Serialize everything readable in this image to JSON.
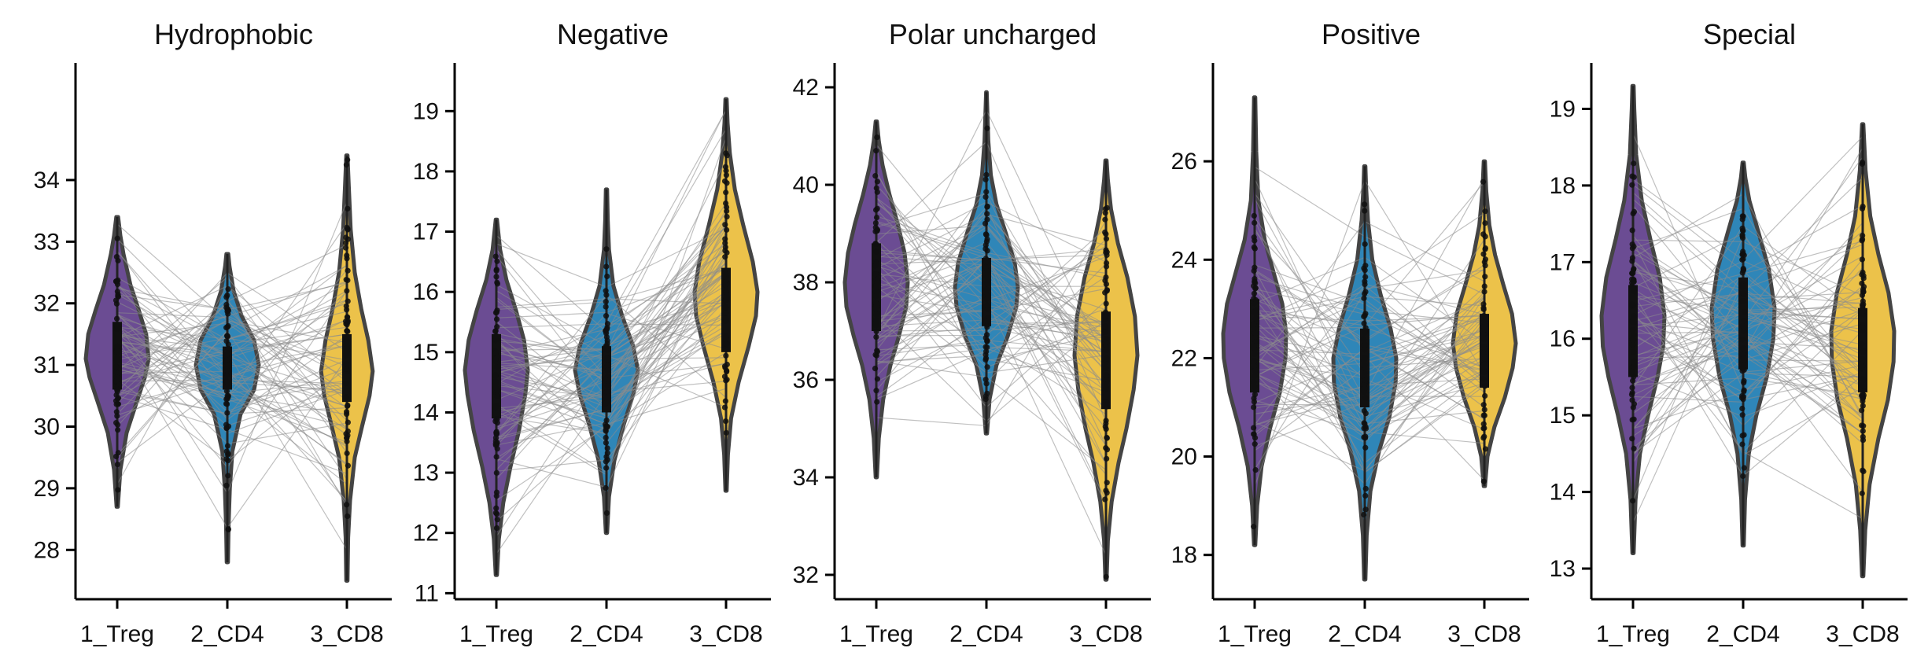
{
  "chart_data": [
    {
      "type": "violin",
      "title": "Hydrophobic",
      "categories": [
        "1_Treg",
        "2_CD4",
        "3_CD8"
      ],
      "yticks": [
        28,
        29,
        30,
        31,
        32,
        33,
        34
      ],
      "ylim": [
        27.2,
        35.9
      ],
      "paired_lines": true,
      "series": [
        {
          "category": "1_Treg",
          "color": "#6b4c93",
          "min": 28.7,
          "q1": 30.6,
          "median": 31.1,
          "q3": 31.7,
          "max": 33.4,
          "density": [
            [
              28.7,
              0.02
            ],
            [
              29.3,
              0.1
            ],
            [
              29.9,
              0.3
            ],
            [
              30.4,
              0.62
            ],
            [
              30.8,
              0.88
            ],
            [
              31.1,
              1.0
            ],
            [
              31.5,
              0.92
            ],
            [
              31.9,
              0.68
            ],
            [
              32.3,
              0.42
            ],
            [
              32.8,
              0.2
            ],
            [
              33.1,
              0.1
            ],
            [
              33.4,
              0.03
            ]
          ]
        },
        {
          "category": "2_CD4",
          "color": "#2f86b8",
          "min": 27.8,
          "q1": 30.6,
          "median": 31.0,
          "q3": 31.3,
          "max": 32.8,
          "density": [
            [
              27.8,
              0.02
            ],
            [
              28.4,
              0.04
            ],
            [
              29.0,
              0.08
            ],
            [
              29.6,
              0.16
            ],
            [
              30.2,
              0.42
            ],
            [
              30.6,
              0.85
            ],
            [
              31.0,
              1.0
            ],
            [
              31.4,
              0.85
            ],
            [
              31.8,
              0.45
            ],
            [
              32.2,
              0.2
            ],
            [
              32.6,
              0.07
            ],
            [
              32.8,
              0.03
            ]
          ]
        },
        {
          "category": "3_CD8",
          "color": "#ecc24a",
          "min": 27.5,
          "q1": 30.4,
          "median": 30.9,
          "q3": 31.5,
          "max": 34.4,
          "density": [
            [
              27.5,
              0.02
            ],
            [
              28.2,
              0.04
            ],
            [
              28.8,
              0.1
            ],
            [
              29.5,
              0.25
            ],
            [
              30.0,
              0.48
            ],
            [
              30.5,
              0.72
            ],
            [
              30.9,
              0.82
            ],
            [
              31.4,
              0.68
            ],
            [
              31.9,
              0.46
            ],
            [
              32.5,
              0.25
            ],
            [
              33.2,
              0.12
            ],
            [
              33.9,
              0.06
            ],
            [
              34.4,
              0.02
            ]
          ]
        }
      ]
    },
    {
      "type": "violin",
      "title": "Negative",
      "categories": [
        "1_Treg",
        "2_CD4",
        "3_CD8"
      ],
      "yticks": [
        11,
        12,
        13,
        14,
        15,
        16,
        17,
        18,
        19
      ],
      "ylim": [
        10.9,
        19.8
      ],
      "paired_lines": true,
      "series": [
        {
          "category": "1_Treg",
          "color": "#6b4c93",
          "min": 11.3,
          "q1": 13.9,
          "median": 14.6,
          "q3": 15.3,
          "max": 17.2,
          "density": [
            [
              11.3,
              0.02
            ],
            [
              11.9,
              0.08
            ],
            [
              12.5,
              0.22
            ],
            [
              13.1,
              0.45
            ],
            [
              13.7,
              0.72
            ],
            [
              14.3,
              0.92
            ],
            [
              14.7,
              1.0
            ],
            [
              15.2,
              0.88
            ],
            [
              15.7,
              0.62
            ],
            [
              16.2,
              0.32
            ],
            [
              16.7,
              0.12
            ],
            [
              17.2,
              0.02
            ]
          ]
        },
        {
          "category": "2_CD4",
          "color": "#2f86b8",
          "min": 12.0,
          "q1": 14.0,
          "median": 14.6,
          "q3": 15.1,
          "max": 17.7,
          "density": [
            [
              12.0,
              0.02
            ],
            [
              12.6,
              0.08
            ],
            [
              13.2,
              0.25
            ],
            [
              13.8,
              0.55
            ],
            [
              14.3,
              0.85
            ],
            [
              14.7,
              1.0
            ],
            [
              15.1,
              0.85
            ],
            [
              15.6,
              0.5
            ],
            [
              16.1,
              0.22
            ],
            [
              16.7,
              0.08
            ],
            [
              17.2,
              0.04
            ],
            [
              17.7,
              0.02
            ]
          ]
        },
        {
          "category": "3_CD8",
          "color": "#ecc24a",
          "min": 12.7,
          "q1": 15.0,
          "median": 15.8,
          "q3": 16.4,
          "max": 19.2,
          "density": [
            [
              12.7,
              0.02
            ],
            [
              13.3,
              0.06
            ],
            [
              13.9,
              0.16
            ],
            [
              14.5,
              0.4
            ],
            [
              15.1,
              0.72
            ],
            [
              15.6,
              0.95
            ],
            [
              16.0,
              1.0
            ],
            [
              16.5,
              0.85
            ],
            [
              17.1,
              0.55
            ],
            [
              17.7,
              0.28
            ],
            [
              18.3,
              0.12
            ],
            [
              18.8,
              0.05
            ],
            [
              19.2,
              0.02
            ]
          ]
        }
      ]
    },
    {
      "type": "violin",
      "title": "Polar uncharged",
      "categories": [
        "1_Treg",
        "2_CD4",
        "3_CD8"
      ],
      "yticks": [
        32,
        34,
        36,
        38,
        40,
        42
      ],
      "ylim": [
        31.5,
        42.5
      ],
      "paired_lines": true,
      "series": [
        {
          "category": "1_Treg",
          "color": "#6b4c93",
          "min": 34.0,
          "q1": 37.0,
          "median": 37.9,
          "q3": 38.8,
          "max": 41.3,
          "density": [
            [
              34.0,
              0.02
            ],
            [
              34.8,
              0.08
            ],
            [
              35.6,
              0.22
            ],
            [
              36.3,
              0.45
            ],
            [
              36.9,
              0.72
            ],
            [
              37.5,
              0.95
            ],
            [
              38.0,
              1.0
            ],
            [
              38.6,
              0.9
            ],
            [
              39.2,
              0.68
            ],
            [
              39.8,
              0.42
            ],
            [
              40.4,
              0.2
            ],
            [
              40.9,
              0.08
            ],
            [
              41.3,
              0.02
            ]
          ]
        },
        {
          "category": "2_CD4",
          "color": "#2f86b8",
          "min": 34.9,
          "q1": 37.1,
          "median": 37.8,
          "q3": 38.5,
          "max": 41.9,
          "density": [
            [
              34.9,
              0.02
            ],
            [
              35.6,
              0.1
            ],
            [
              36.3,
              0.32
            ],
            [
              36.9,
              0.68
            ],
            [
              37.5,
              0.95
            ],
            [
              37.9,
              1.0
            ],
            [
              38.4,
              0.9
            ],
            [
              39.0,
              0.62
            ],
            [
              39.6,
              0.32
            ],
            [
              40.2,
              0.14
            ],
            [
              40.9,
              0.06
            ],
            [
              41.5,
              0.03
            ],
            [
              41.9,
              0.01
            ]
          ]
        },
        {
          "category": "3_CD8",
          "color": "#ecc24a",
          "min": 31.9,
          "q1": 35.4,
          "median": 36.5,
          "q3": 37.4,
          "max": 40.5,
          "density": [
            [
              31.9,
              0.02
            ],
            [
              32.7,
              0.06
            ],
            [
              33.5,
              0.18
            ],
            [
              34.3,
              0.4
            ],
            [
              35.0,
              0.65
            ],
            [
              35.8,
              0.88
            ],
            [
              36.5,
              1.0
            ],
            [
              37.3,
              0.92
            ],
            [
              38.1,
              0.68
            ],
            [
              38.8,
              0.38
            ],
            [
              39.5,
              0.16
            ],
            [
              40.1,
              0.06
            ],
            [
              40.5,
              0.02
            ]
          ]
        }
      ]
    },
    {
      "type": "violin",
      "title": "Positive",
      "categories": [
        "1_Treg",
        "2_CD4",
        "3_CD8"
      ],
      "yticks": [
        18,
        20,
        22,
        24,
        26
      ],
      "ylim": [
        17.1,
        28.0
      ],
      "paired_lines": true,
      "series": [
        {
          "category": "1_Treg",
          "color": "#6b4c93",
          "min": 18.2,
          "q1": 21.3,
          "median": 22.3,
          "q3": 23.2,
          "max": 27.3,
          "density": [
            [
              18.2,
              0.02
            ],
            [
              19.0,
              0.08
            ],
            [
              19.8,
              0.22
            ],
            [
              20.6,
              0.5
            ],
            [
              21.3,
              0.8
            ],
            [
              22.0,
              0.98
            ],
            [
              22.5,
              1.0
            ],
            [
              23.1,
              0.88
            ],
            [
              23.7,
              0.62
            ],
            [
              24.4,
              0.32
            ],
            [
              25.2,
              0.12
            ],
            [
              26.2,
              0.05
            ],
            [
              27.3,
              0.02
            ]
          ]
        },
        {
          "category": "2_CD4",
          "color": "#2f86b8",
          "min": 17.5,
          "q1": 21.0,
          "median": 21.8,
          "q3": 22.6,
          "max": 25.9,
          "density": [
            [
              17.5,
              0.02
            ],
            [
              18.4,
              0.06
            ],
            [
              19.3,
              0.18
            ],
            [
              20.1,
              0.45
            ],
            [
              20.8,
              0.78
            ],
            [
              21.5,
              0.98
            ],
            [
              22.0,
              1.0
            ],
            [
              22.6,
              0.82
            ],
            [
              23.3,
              0.5
            ],
            [
              24.0,
              0.24
            ],
            [
              24.8,
              0.1
            ],
            [
              25.5,
              0.04
            ],
            [
              25.9,
              0.02
            ]
          ]
        },
        {
          "category": "3_CD8",
          "color": "#ecc24a",
          "min": 19.4,
          "q1": 21.4,
          "median": 22.3,
          "q3": 22.9,
          "max": 26.0,
          "density": [
            [
              19.4,
              0.02
            ],
            [
              20.0,
              0.1
            ],
            [
              20.6,
              0.32
            ],
            [
              21.2,
              0.65
            ],
            [
              21.8,
              0.9
            ],
            [
              22.3,
              1.0
            ],
            [
              22.9,
              0.88
            ],
            [
              23.5,
              0.6
            ],
            [
              24.1,
              0.34
            ],
            [
              24.7,
              0.16
            ],
            [
              25.4,
              0.06
            ],
            [
              26.0,
              0.02
            ]
          ]
        }
      ]
    },
    {
      "type": "violin",
      "title": "Special",
      "categories": [
        "1_Treg",
        "2_CD4",
        "3_CD8"
      ],
      "yticks": [
        13,
        14,
        15,
        16,
        17,
        18,
        19
      ],
      "ylim": [
        12.6,
        19.6
      ],
      "paired_lines": true,
      "series": [
        {
          "category": "1_Treg",
          "color": "#6b4c93",
          "min": 13.2,
          "q1": 15.5,
          "median": 16.1,
          "q3": 16.7,
          "max": 19.3,
          "density": [
            [
              13.2,
              0.02
            ],
            [
              13.9,
              0.08
            ],
            [
              14.5,
              0.22
            ],
            [
              15.0,
              0.48
            ],
            [
              15.5,
              0.78
            ],
            [
              15.9,
              0.96
            ],
            [
              16.3,
              1.0
            ],
            [
              16.8,
              0.85
            ],
            [
              17.3,
              0.55
            ],
            [
              17.8,
              0.28
            ],
            [
              18.4,
              0.1
            ],
            [
              19.0,
              0.04
            ],
            [
              19.3,
              0.02
            ]
          ]
        },
        {
          "category": "2_CD4",
          "color": "#2f86b8",
          "min": 13.3,
          "q1": 15.6,
          "median": 16.2,
          "q3": 16.8,
          "max": 18.3,
          "density": [
            [
              13.3,
              0.02
            ],
            [
              13.9,
              0.06
            ],
            [
              14.5,
              0.18
            ],
            [
              15.0,
              0.42
            ],
            [
              15.5,
              0.75
            ],
            [
              16.0,
              0.96
            ],
            [
              16.4,
              1.0
            ],
            [
              16.9,
              0.82
            ],
            [
              17.4,
              0.48
            ],
            [
              17.8,
              0.2
            ],
            [
              18.1,
              0.07
            ],
            [
              18.3,
              0.02
            ]
          ]
        },
        {
          "category": "3_CD8",
          "color": "#ecc24a",
          "min": 12.9,
          "q1": 15.3,
          "median": 15.9,
          "q3": 16.4,
          "max": 18.8,
          "density": [
            [
              12.9,
              0.02
            ],
            [
              13.5,
              0.08
            ],
            [
              14.1,
              0.22
            ],
            [
              14.7,
              0.5
            ],
            [
              15.2,
              0.8
            ],
            [
              15.7,
              0.98
            ],
            [
              16.1,
              1.0
            ],
            [
              16.6,
              0.82
            ],
            [
              17.1,
              0.5
            ],
            [
              17.6,
              0.24
            ],
            [
              18.2,
              0.09
            ],
            [
              18.8,
              0.02
            ]
          ]
        }
      ]
    }
  ]
}
